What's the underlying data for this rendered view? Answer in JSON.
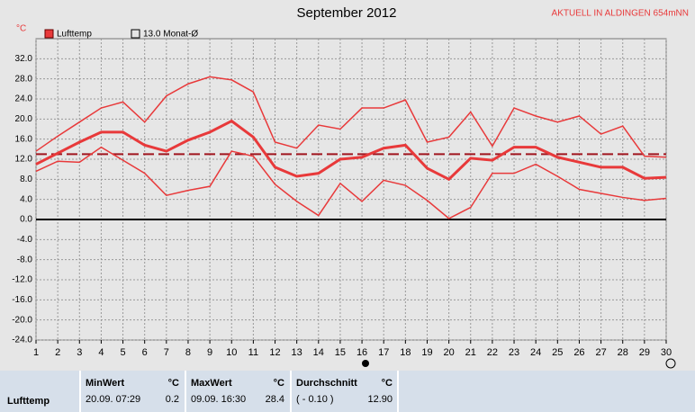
{
  "chart_data": {
    "type": "line",
    "title": "September 2012",
    "y_unit": "°C",
    "station": "AKTUELL IN ALDINGEN 654mNN",
    "x": [
      1,
      2,
      3,
      4,
      5,
      6,
      7,
      8,
      9,
      10,
      11,
      12,
      13,
      14,
      15,
      16,
      17,
      18,
      19,
      20,
      21,
      22,
      23,
      24,
      25,
      26,
      27,
      28,
      29,
      30
    ],
    "xlim": [
      1,
      30
    ],
    "xticks": [
      1,
      2,
      3,
      4,
      5,
      6,
      7,
      8,
      9,
      10,
      11,
      12,
      13,
      14,
      15,
      16,
      17,
      18,
      19,
      20,
      21,
      22,
      23,
      24,
      25,
      26,
      27,
      28,
      29,
      30
    ],
    "ylim": [
      -24,
      36
    ],
    "yticks": [
      {
        "value": -24,
        "label": "-24.0"
      },
      {
        "value": -20,
        "label": "-20.0"
      },
      {
        "value": -16,
        "label": "-16.0"
      },
      {
        "value": -12,
        "label": "-12.0"
      },
      {
        "value": -8,
        "label": "-8.0"
      },
      {
        "value": -4,
        "label": "-4.0"
      },
      {
        "value": 0,
        "label": "0.0"
      },
      {
        "value": 4,
        "label": "4.0"
      },
      {
        "value": 8,
        "label": "8.0"
      },
      {
        "value": 12,
        "label": "12.0"
      },
      {
        "value": 16,
        "label": "16.0"
      },
      {
        "value": 20,
        "label": "20.0"
      },
      {
        "value": 24,
        "label": "24.0"
      },
      {
        "value": 28,
        "label": "28.0"
      },
      {
        "value": 32,
        "label": "32.0"
      }
    ],
    "grid": true,
    "series": [
      {
        "name": "Lufttemp",
        "color": "#e8393a",
        "values": [
          11.0,
          13.2,
          15.4,
          17.4,
          17.4,
          14.8,
          13.6,
          15.8,
          17.4,
          19.6,
          16.4,
          10.4,
          8.6,
          9.2,
          12.0,
          12.4,
          14.2,
          14.8,
          10.2,
          8.0,
          12.2,
          11.8,
          14.4,
          14.4,
          12.4,
          11.4,
          10.4,
          10.4,
          8.2,
          8.4
        ],
        "max": [
          13.6,
          16.6,
          19.4,
          22.2,
          23.4,
          19.4,
          24.6,
          27.0,
          28.4,
          27.8,
          25.4,
          15.4,
          14.2,
          18.8,
          18.0,
          22.2,
          22.2,
          23.8,
          15.4,
          16.4,
          21.4,
          14.6,
          22.2,
          20.6,
          19.4,
          20.6,
          17.0,
          18.6,
          12.6,
          12.4
        ],
        "min": [
          9.6,
          11.6,
          11.4,
          14.4,
          11.8,
          9.2,
          4.8,
          5.8,
          6.6,
          13.6,
          12.6,
          7.0,
          3.6,
          0.8,
          7.2,
          3.6,
          7.8,
          6.8,
          3.8,
          0.2,
          2.4,
          9.2,
          9.2,
          11.0,
          8.6,
          6.0,
          5.2,
          4.4,
          3.8,
          4.2
        ]
      }
    ],
    "reference": {
      "label": "13.0 Monat-Ø",
      "value": 13.0,
      "color": "#a0141e"
    }
  },
  "table": {
    "row_label": "Lufttemp",
    "columns": [
      {
        "header": "MinWert",
        "unit": "°C",
        "time": "20.09.  07:29",
        "value": "0.2"
      },
      {
        "header": "MaxWert",
        "unit": "°C",
        "time": "09.09.  16:30",
        "value": "28.4"
      },
      {
        "header": "Durchschnitt",
        "unit": "°C",
        "time": "( - 0.10 )",
        "value": "12.90"
      }
    ]
  }
}
